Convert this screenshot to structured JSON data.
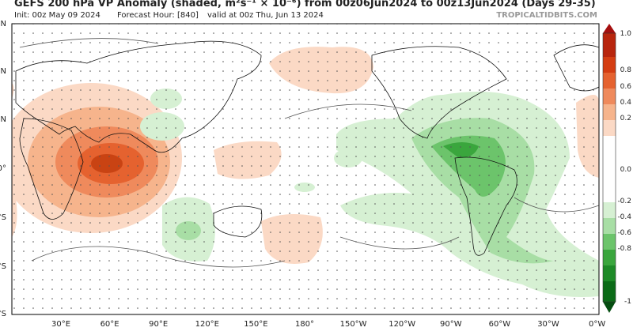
{
  "header": {
    "title": "GEFS 200 hPa VP Anomaly (shaded, m²s⁻¹ × 10⁻⁶) from 00z06Jun2024 to 00z13Jun2024 (Days 29-35)",
    "init": "Init: 00z May 09 2024",
    "forecast_hour": "Forecast Hour: [840]",
    "valid": "valid at 00z Thu, Jun 13 2024",
    "watermark": "TROPICALTIDBITS.COM"
  },
  "map": {
    "longitude_labels": [
      "30°E",
      "60°E",
      "90°E",
      "120°E",
      "150°E",
      "180°",
      "150°W",
      "120°W",
      "90°W",
      "60°W",
      "30°W",
      "0°W"
    ],
    "latitude_labels": [
      "N",
      "N",
      "N",
      "0°",
      "°S",
      "°S",
      "°S"
    ]
  },
  "colorbar": {
    "labels": [
      "1.0",
      "0.8",
      "0.6",
      "0.4",
      "0.2",
      "0.0",
      "-0.2",
      "-0.4",
      "-0.6",
      "-0.8",
      "-1"
    ]
  }
}
